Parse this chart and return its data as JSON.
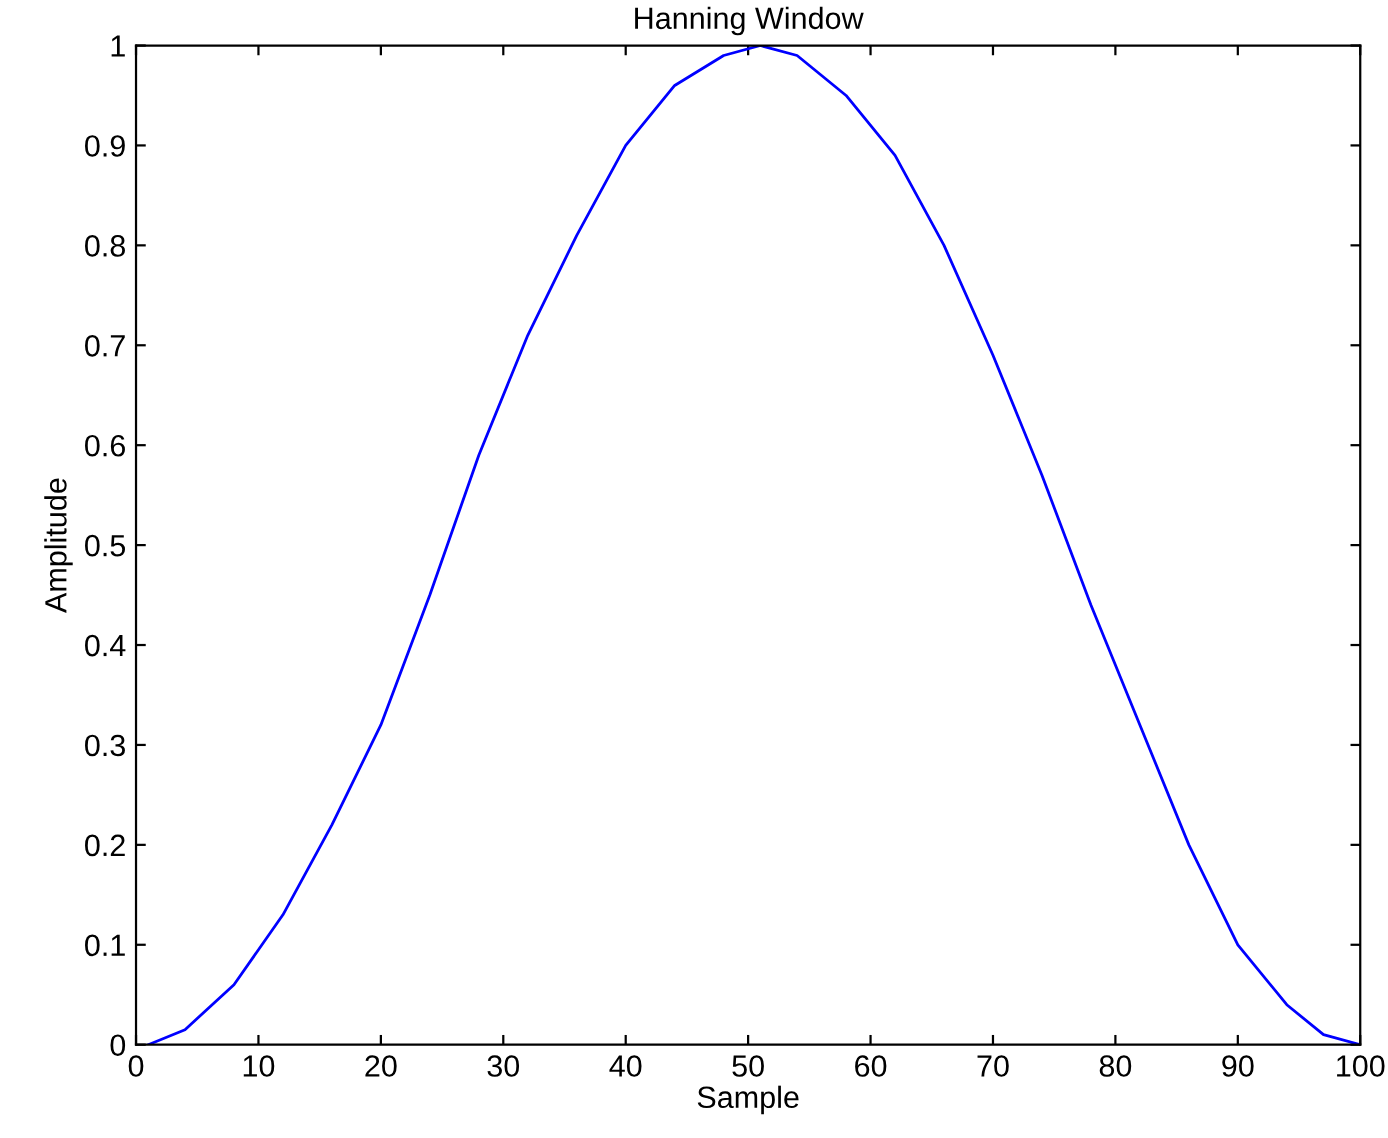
{
  "chart_data": {
    "type": "line",
    "title": "Hanning Window",
    "xlabel": "Sample",
    "ylabel": "Amplitude",
    "x": [
      1,
      4,
      8,
      12,
      16,
      20,
      24,
      28,
      32,
      36,
      40,
      44,
      48,
      51,
      54,
      58,
      62,
      66,
      70,
      74,
      78,
      82,
      86,
      90,
      94,
      97,
      100
    ],
    "series": [
      {
        "color": "#0000ff",
        "values": [
          0.0,
          0.015,
          0.06,
          0.13,
          0.22,
          0.32,
          0.45,
          0.59,
          0.71,
          0.81,
          0.9,
          0.96,
          0.99,
          1.0,
          0.99,
          0.95,
          0.89,
          0.8,
          0.69,
          0.57,
          0.44,
          0.32,
          0.2,
          0.1,
          0.04,
          0.01,
          0.0
        ]
      }
    ],
    "xlim": [
      0,
      100
    ],
    "ylim": [
      0,
      1
    ],
    "xticks": [
      0,
      10,
      20,
      30,
      40,
      50,
      60,
      70,
      80,
      90,
      100
    ],
    "yticks": [
      0,
      0.1,
      0.2,
      0.3,
      0.4,
      0.5,
      0.6,
      0.7,
      0.8,
      0.9,
      1
    ],
    "grid": false,
    "marker": "none",
    "line_style": "solid"
  }
}
